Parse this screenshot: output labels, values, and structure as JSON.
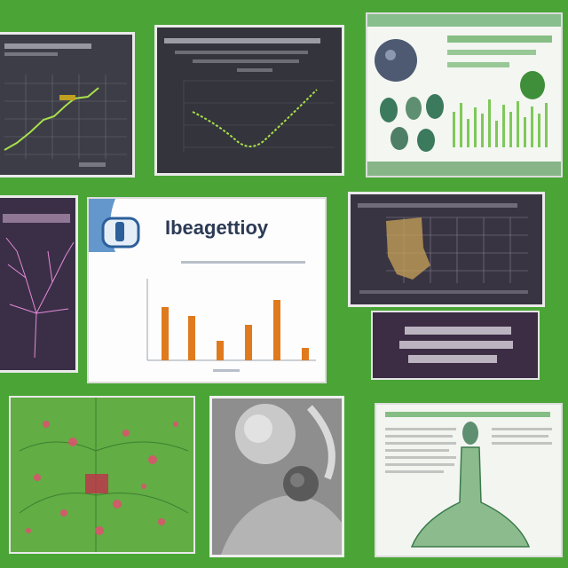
{
  "collage": {
    "center_panel": {
      "logo_text": "Ibeagettioy"
    }
  },
  "colors": {
    "background": "#4aa536",
    "dark_card": "#3b3b44",
    "light_card": "#f6f7f3",
    "accent_green": "#7ed321",
    "accent_orange": "#e07a1f"
  }
}
